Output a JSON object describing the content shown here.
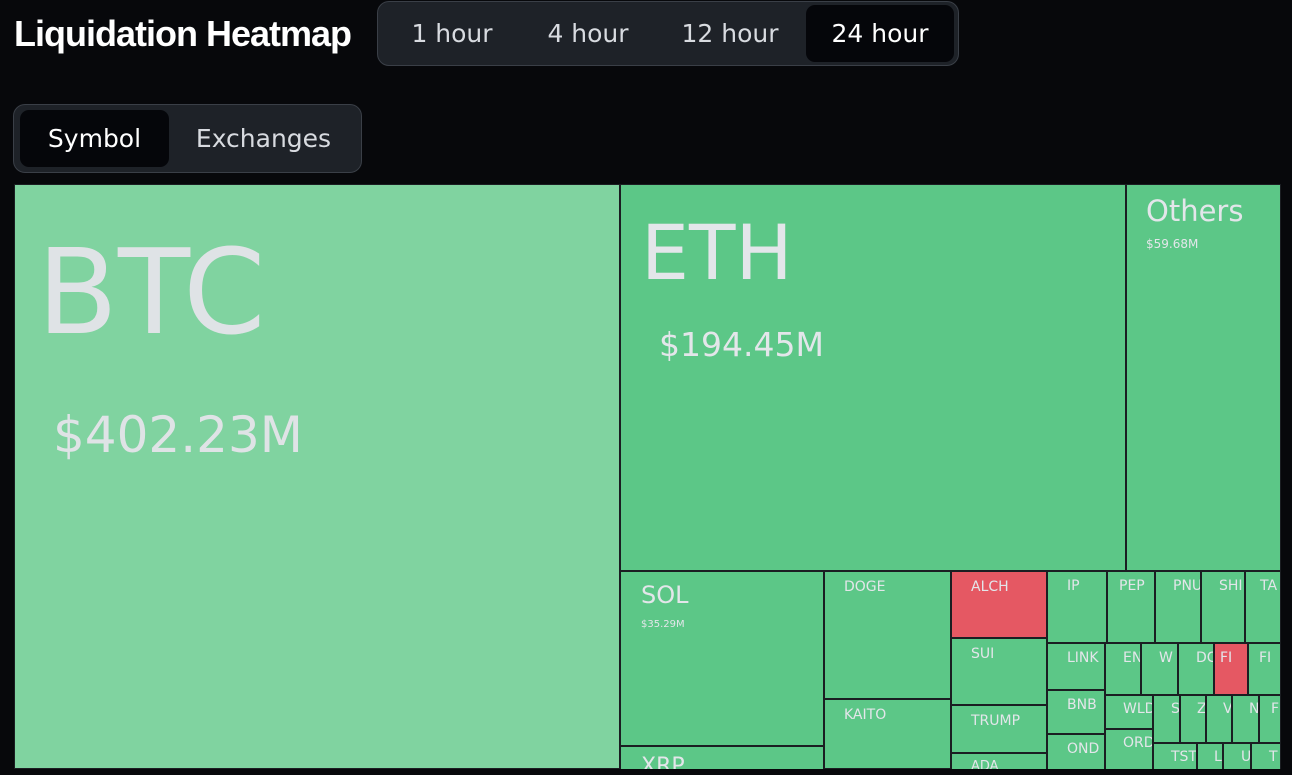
{
  "header": {
    "title": "Liquidation Heatmap"
  },
  "timeframes": {
    "items": [
      {
        "label": "1 hour"
      },
      {
        "label": "4 hour"
      },
      {
        "label": "12 hour"
      },
      {
        "label": "24 hour",
        "selected": true
      }
    ]
  },
  "view_toggle": {
    "items": [
      {
        "label": "Symbol",
        "selected": true
      },
      {
        "label": "Exchanges"
      }
    ]
  },
  "colors": {
    "long_dominant": "#5cc787",
    "long_dominant_light": "#80d3a0",
    "short_dominant": "#e55863",
    "background": "#07080b"
  },
  "treemap": {
    "btc": {
      "symbol": "BTC",
      "value": "$402.23M"
    },
    "eth": {
      "symbol": "ETH",
      "value": "$194.45M"
    },
    "others": {
      "symbol": "Others",
      "value": "$59.68M"
    },
    "sol": {
      "symbol": "SOL",
      "value": "$35.29M"
    },
    "doge": {
      "symbol": "DOGE"
    },
    "alch": {
      "symbol": "ALCH"
    },
    "ip": {
      "symbol": "IP"
    },
    "pep": {
      "symbol": "PEP"
    },
    "pnu": {
      "symbol": "PNU"
    },
    "shi": {
      "symbol": "SHI"
    },
    "ta": {
      "symbol": "TA"
    },
    "sui": {
      "symbol": "SUI"
    },
    "link": {
      "symbol": "LINK"
    },
    "en": {
      "symbol": "EN"
    },
    "w": {
      "symbol": "W"
    },
    "dc": {
      "symbol": "DC"
    },
    "fi": {
      "symbol": "FI"
    },
    "fi2": {
      "symbol": "FI"
    },
    "kaito": {
      "symbol": "KAITO"
    },
    "trump": {
      "symbol": "TRUMP"
    },
    "bnb": {
      "symbol": "BNB"
    },
    "wld": {
      "symbol": "WLD"
    },
    "s": {
      "symbol": "S"
    },
    "z": {
      "symbol": "Z"
    },
    "v": {
      "symbol": "V"
    },
    "n": {
      "symbol": "N"
    },
    "f": {
      "symbol": "F"
    },
    "xrp": {
      "symbol": "XRP"
    },
    "ada": {
      "symbol": "ADA"
    },
    "ond": {
      "symbol": "OND"
    },
    "ord": {
      "symbol": "ORD"
    },
    "tst": {
      "symbol": "TST"
    },
    "l": {
      "symbol": "L"
    },
    "u": {
      "symbol": "U"
    },
    "t": {
      "symbol": "T"
    }
  }
}
